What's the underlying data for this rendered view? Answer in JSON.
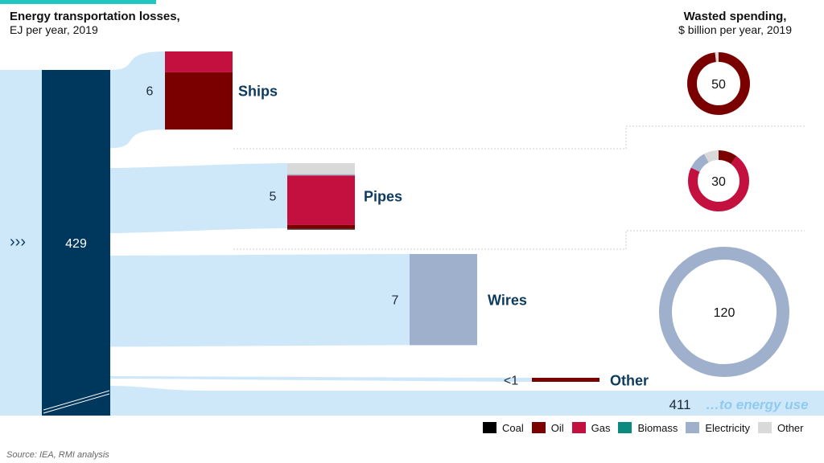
{
  "titles": {
    "left_title": "Energy transportation losses,",
    "left_subtitle": "EJ per year, 2019",
    "right_title": "Wasted spending,",
    "right_subtitle": "$ billion per year, 2019"
  },
  "source": "Source: IEA, RMI analysis",
  "colors": {
    "total_bar": "#00375c",
    "flow": "#cfe8f9",
    "label_dark": "#0d3b5e",
    "coal": "#000000",
    "oil": "#7a0000",
    "gas": "#c3103f",
    "biomass": "#0b8a80",
    "electricity": "#9fb0cc",
    "other": "#d9d9d9",
    "energy_use_text": "#8ecbef"
  },
  "legend": [
    {
      "name": "Coal",
      "color": "#000000"
    },
    {
      "name": "Oil",
      "color": "#7a0000"
    },
    {
      "name": "Gas",
      "color": "#c3103f"
    },
    {
      "name": "Biomass",
      "color": "#0b8a80"
    },
    {
      "name": "Electricity",
      "color": "#9fb0cc"
    },
    {
      "name": "Other",
      "color": "#d9d9d9"
    }
  ],
  "chart_data": [
    {
      "type": "bar",
      "title": "Energy transportation losses,",
      "subtitle": "EJ per year, 2019",
      "total_label": "429",
      "total_value": 429,
      "categories": [
        "Ships",
        "Pipes",
        "Wires",
        "Other"
      ],
      "value_labels": [
        "6",
        "5",
        "7",
        "<1"
      ],
      "values": [
        6,
        5,
        7,
        0.5
      ],
      "series": [
        {
          "name": "Coal",
          "values": [
            0,
            0.05,
            0,
            0
          ]
        },
        {
          "name": "Oil",
          "values": [
            4.4,
            0.3,
            0,
            0.5
          ]
        },
        {
          "name": "Gas",
          "values": [
            1.6,
            3.8,
            0,
            0
          ]
        },
        {
          "name": "Biomass",
          "values": [
            0,
            0,
            0,
            0
          ]
        },
        {
          "name": "Electricity",
          "values": [
            0,
            0.1,
            7,
            0
          ]
        },
        {
          "name": "Other",
          "values": [
            0,
            0.85,
            0,
            0
          ]
        }
      ],
      "remaining_label": "411",
      "remaining_value": 411,
      "remaining_text": "…to energy use"
    },
    {
      "type": "pie",
      "title": "Wasted spending,",
      "subtitle": "$ billion per year, 2019",
      "categories": [
        "Ships",
        "Pipes",
        "Wires"
      ],
      "totals": [
        "50",
        "30",
        "120"
      ],
      "total_values": [
        50,
        30,
        120
      ],
      "slices": [
        [
          {
            "name": "Oil",
            "share": 0.98
          },
          {
            "name": "Other",
            "share": 0.02
          }
        ],
        [
          {
            "name": "Oil",
            "share": 0.1
          },
          {
            "name": "Gas",
            "share": 0.72
          },
          {
            "name": "Electricity",
            "share": 0.1
          },
          {
            "name": "Other",
            "share": 0.08
          }
        ],
        [
          {
            "name": "Electricity",
            "share": 1.0
          }
        ]
      ]
    }
  ]
}
